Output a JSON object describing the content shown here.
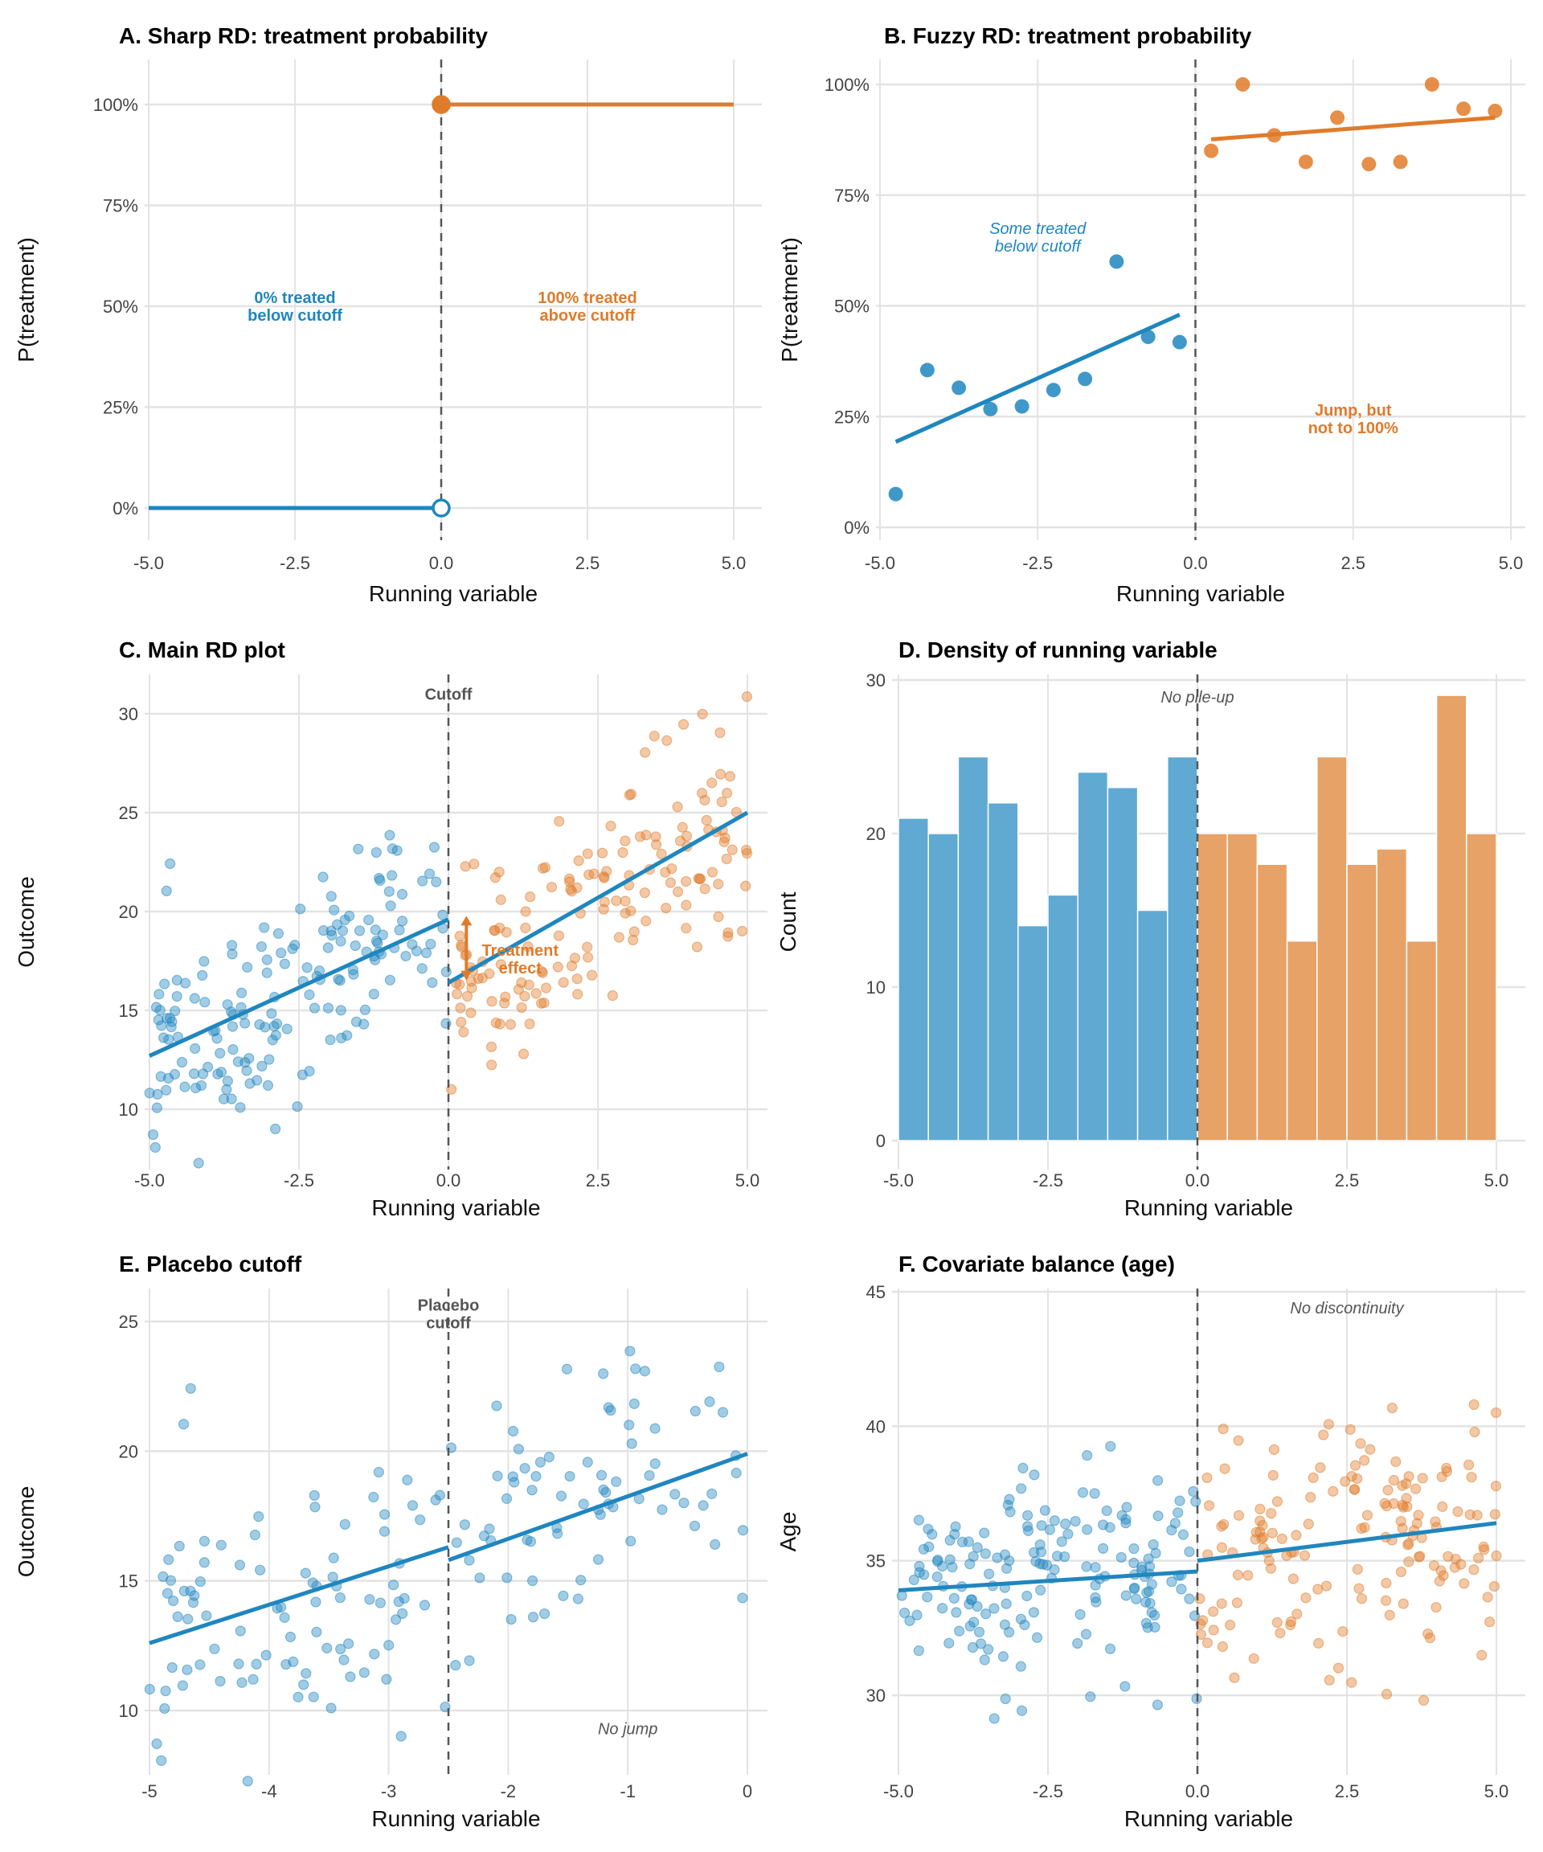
{
  "colors": {
    "blue": "#1f86bf",
    "orange": "#e07b2a",
    "blue_fill": "#5fa9d3",
    "orange_fill": "#e6a267",
    "cutoff": "#555555",
    "grid": "#e3e3e3"
  },
  "chart_data": [
    {
      "id": "A",
      "type": "line",
      "title": "A. Sharp RD: treatment probability",
      "xlabel": "Running variable",
      "ylabel": "P(treatment)",
      "xlim": [
        -5,
        5
      ],
      "ylim": [
        0,
        1
      ],
      "xticks": [
        -5,
        -2.5,
        0,
        2.5,
        5
      ],
      "xtick_labels": [
        "-5.0",
        "-2.5",
        "0.0",
        "2.5",
        "5.0"
      ],
      "yticks": [
        0,
        0.25,
        0.5,
        0.75,
        1
      ],
      "ytick_labels": [
        "0%",
        "25%",
        "50%",
        "75%",
        "100%"
      ],
      "cutoff": 0,
      "segments": [
        {
          "name": "below",
          "color": "blue",
          "x": [
            -5,
            0
          ],
          "y": [
            0,
            0
          ]
        },
        {
          "name": "above",
          "color": "orange",
          "x": [
            0,
            5
          ],
          "y": [
            1,
            1
          ]
        }
      ],
      "markers": [
        {
          "x": 0,
          "y": 0,
          "color": "blue",
          "open": true
        },
        {
          "x": 0,
          "y": 1,
          "color": "orange",
          "open": false
        }
      ],
      "annotations": [
        {
          "lines": [
            "0% treated",
            "below cutoff"
          ],
          "x": -2.5,
          "y": 0.5,
          "color": "blue",
          "style": "bold"
        },
        {
          "lines": [
            "100% treated",
            "above cutoff"
          ],
          "x": 2.5,
          "y": 0.5,
          "color": "orange",
          "style": "bold"
        }
      ]
    },
    {
      "id": "B",
      "type": "scatter",
      "title": "B. Fuzzy RD: treatment probability",
      "xlabel": "Running variable",
      "ylabel": "P(treatment)",
      "xlim": [
        -5,
        5
      ],
      "ylim": [
        0,
        1
      ],
      "xticks": [
        -5,
        -2.5,
        0,
        2.5,
        5
      ],
      "xtick_labels": [
        "-5.0",
        "-2.5",
        "0.0",
        "2.5",
        "5.0"
      ],
      "yticks": [
        0,
        0.25,
        0.5,
        0.75,
        1
      ],
      "ytick_labels": [
        "0%",
        "25%",
        "50%",
        "75%",
        "100%"
      ],
      "cutoff": 0,
      "series": [
        {
          "name": "below",
          "color": "blue",
          "x": [
            -4.75,
            -4.25,
            -3.75,
            -3.25,
            -2.75,
            -2.25,
            -1.75,
            -1.25,
            -0.75,
            -0.25
          ],
          "y": [
            0.075,
            0.355,
            0.315,
            0.267,
            0.273,
            0.31,
            0.335,
            0.6,
            0.43,
            0.418
          ]
        },
        {
          "name": "above",
          "color": "orange",
          "x": [
            0.25,
            0.75,
            1.25,
            1.75,
            2.25,
            2.75,
            3.25,
            3.75,
            4.25,
            4.75
          ],
          "y": [
            0.85,
            1.0,
            0.885,
            0.825,
            0.925,
            0.82,
            0.825,
            1.0,
            0.945,
            0.94
          ]
        }
      ],
      "segments": [
        {
          "name": "fit-below",
          "color": "blue",
          "x": [
            -4.75,
            -0.25
          ],
          "y": [
            0.193,
            0.48
          ]
        },
        {
          "name": "fit-above",
          "color": "orange",
          "x": [
            0.25,
            4.75
          ],
          "y": [
            0.876,
            0.925
          ]
        }
      ],
      "annotations": [
        {
          "lines": [
            "Some treated",
            "below cutoff"
          ],
          "x": -2.5,
          "y": 0.655,
          "color": "blue",
          "style": "italic"
        },
        {
          "lines": [
            "Jump, but",
            "not to 100%"
          ],
          "x": 2.5,
          "y": 0.245,
          "color": "orange",
          "style": "bold"
        }
      ]
    },
    {
      "id": "C",
      "type": "scatter",
      "title": "C. Main RD plot",
      "xlabel": "Running variable",
      "ylabel": "Outcome",
      "xlim": [
        -5,
        5
      ],
      "ylim": [
        10,
        30
      ],
      "xticks": [
        -5,
        -2.5,
        0,
        2.5,
        5
      ],
      "xtick_labels": [
        "-5.0",
        "-2.5",
        "0.0",
        "2.5",
        "5.0"
      ],
      "yticks": [
        10,
        15,
        20,
        25,
        30
      ],
      "ytick_labels": [
        "10",
        "15",
        "20",
        "25",
        "30"
      ],
      "cutoff": 0,
      "scatter_gen": [
        {
          "color": "blue",
          "n": 170,
          "x": [
            -5,
            0
          ],
          "intercept_at_x0": 12.7,
          "slope": 1.38,
          "sd": 2.6,
          "seed": 11
        },
        {
          "color": "orange",
          "n": 160,
          "x": [
            0,
            5
          ],
          "intercept_at_x0": 16.4,
          "slope": 1.72,
          "sd": 2.6,
          "seed": 23
        }
      ],
      "segments": [
        {
          "name": "fit-below",
          "color": "blue",
          "x": [
            -5,
            0
          ],
          "y": [
            12.7,
            19.6
          ]
        },
        {
          "name": "fit-above",
          "color": "blue",
          "x": [
            0,
            5
          ],
          "y": [
            16.4,
            25.0
          ]
        }
      ],
      "arrow": {
        "x": 0.3,
        "y": [
          16.6,
          19.7
        ],
        "color": "orange"
      },
      "annotations": [
        {
          "lines": [
            "Cutoff"
          ],
          "x": 0,
          "y": 31.0,
          "color": "cutoff",
          "style": "bold"
        },
        {
          "lines": [
            "Treatment",
            "effect"
          ],
          "x": 1.2,
          "y": 17.6,
          "color": "orange",
          "style": "bold"
        }
      ]
    },
    {
      "id": "D",
      "type": "bar",
      "title": "D. Density of running variable",
      "xlabel": "Running variable",
      "ylabel": "Count",
      "xlim": [
        -5,
        5
      ],
      "ylim": [
        0,
        30
      ],
      "xticks": [
        -5,
        -2.5,
        0,
        2.5,
        5
      ],
      "xtick_labels": [
        "-5.0",
        "-2.5",
        "0.0",
        "2.5",
        "5.0"
      ],
      "yticks": [
        0,
        10,
        20,
        30
      ],
      "ytick_labels": [
        "0",
        "10",
        "20",
        "30"
      ],
      "cutoff": 0,
      "bin_width": 0.5,
      "bins": [
        {
          "color": "blue_fill",
          "start": -5,
          "counts": [
            21,
            20,
            25,
            22,
            14,
            16,
            24,
            23,
            15,
            25
          ]
        },
        {
          "color": "orange_fill",
          "start": 0,
          "counts": [
            20,
            20,
            18,
            13,
            25,
            18,
            19,
            13,
            29,
            20
          ]
        }
      ],
      "annotations": [
        {
          "lines": [
            "No pile-up"
          ],
          "x": 0,
          "y": 28.9,
          "color": "cutoff",
          "style": "italic"
        }
      ]
    },
    {
      "id": "E",
      "type": "scatter",
      "title": "E. Placebo cutoff",
      "xlabel": "Running variable",
      "ylabel": "Outcome",
      "xlim": [
        -5,
        0
      ],
      "ylim": [
        10,
        25
      ],
      "xticks": [
        -5,
        -4,
        -3,
        -2,
        -1,
        0
      ],
      "xtick_labels": [
        "-5",
        "-4",
        "-3",
        "-2",
        "-1",
        "0"
      ],
      "yticks": [
        10,
        15,
        20,
        25
      ],
      "ytick_labels": [
        "10",
        "15",
        "20",
        "25"
      ],
      "cutoff": -2.5,
      "scatter_gen": [
        {
          "color": "blue",
          "n": 170,
          "x": [
            -5,
            0
          ],
          "intercept_at_x0": 12.7,
          "slope": 1.38,
          "sd": 2.6,
          "seed": 11
        }
      ],
      "segments": [
        {
          "name": "fit-below",
          "color": "blue",
          "x": [
            -5,
            -2.5
          ],
          "y": [
            12.6,
            16.3
          ]
        },
        {
          "name": "fit-above",
          "color": "blue",
          "x": [
            -2.5,
            0
          ],
          "y": [
            15.8,
            19.9
          ]
        }
      ],
      "annotations": [
        {
          "lines": [
            "Placebo",
            "cutoff"
          ],
          "x": -2.5,
          "y": 25.3,
          "color": "cutoff",
          "style": "bold"
        },
        {
          "lines": [
            "No jump"
          ],
          "x": -1.0,
          "y": 9.3,
          "color": "cutoff",
          "style": "italic"
        }
      ]
    },
    {
      "id": "F",
      "type": "scatter",
      "title": "F. Covariate balance (age)",
      "xlabel": "Running variable",
      "ylabel": "Age",
      "xlim": [
        -5,
        5
      ],
      "ylim": [
        30,
        45
      ],
      "xticks": [
        -5,
        -2.5,
        0,
        2.5,
        5
      ],
      "xtick_labels": [
        "-5.0",
        "-2.5",
        "0.0",
        "2.5",
        "5.0"
      ],
      "yticks": [
        30,
        35,
        40,
        45
      ],
      "ytick_labels": [
        "30",
        "35",
        "40",
        "45"
      ],
      "cutoff": 0,
      "scatter_gen": [
        {
          "color": "blue",
          "n": 170,
          "x": [
            -5,
            0
          ],
          "intercept_at_x0": 33.9,
          "slope": 0.14,
          "sd": 2.0,
          "seed": 37
        },
        {
          "color": "orange",
          "n": 160,
          "x": [
            0,
            5
          ],
          "intercept_at_x0": 35.0,
          "slope": 0.28,
          "sd": 2.2,
          "seed": 53
        }
      ],
      "segments": [
        {
          "name": "fit-below",
          "color": "blue",
          "x": [
            -5,
            0
          ],
          "y": [
            33.9,
            34.6
          ]
        },
        {
          "name": "fit-above",
          "color": "blue",
          "x": [
            0,
            5
          ],
          "y": [
            35.0,
            36.4
          ]
        }
      ],
      "annotations": [
        {
          "lines": [
            "No discontinuity"
          ],
          "x": 2.5,
          "y": 44.4,
          "color": "cutoff",
          "style": "italic"
        }
      ]
    }
  ]
}
